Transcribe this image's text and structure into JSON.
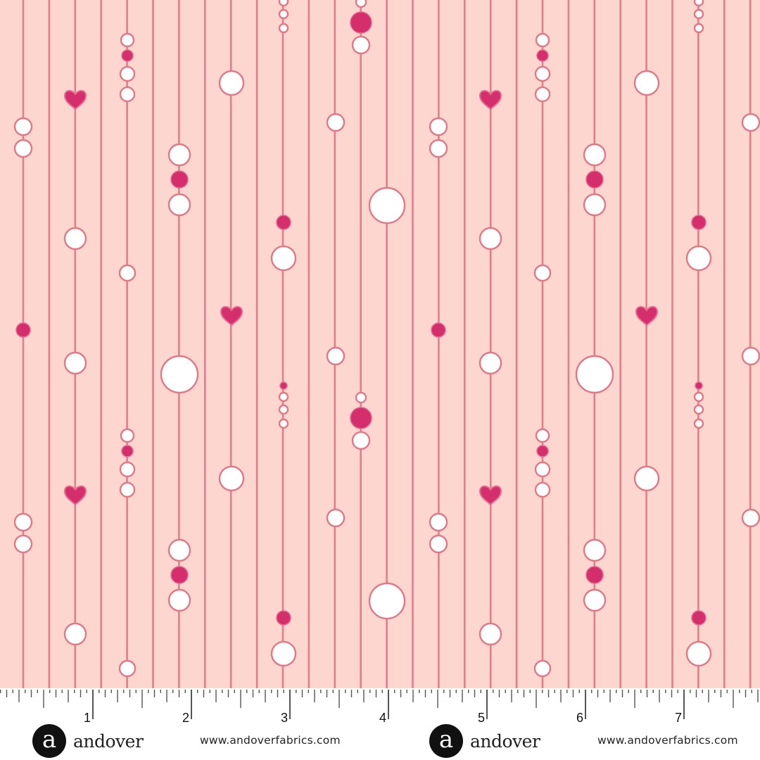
{
  "colors": {
    "background": "#fcd6cf",
    "stripe": "#e47d8a",
    "bead_white": "#ffffff",
    "bead_outline": "#e27884",
    "bead_pink": "#d42f6c",
    "ruler_tick": "#555555"
  },
  "ruler": {
    "unit": "inch",
    "labels": [
      "1",
      "2",
      "3",
      "4",
      "5",
      "6",
      "7"
    ]
  },
  "footer": {
    "logos": [
      {
        "mark": "a",
        "name": "andover",
        "url": "www.andoverfabrics.com"
      },
      {
        "mark": "a",
        "name": "andover",
        "url": "www.andoverfabrics.com"
      }
    ]
  }
}
